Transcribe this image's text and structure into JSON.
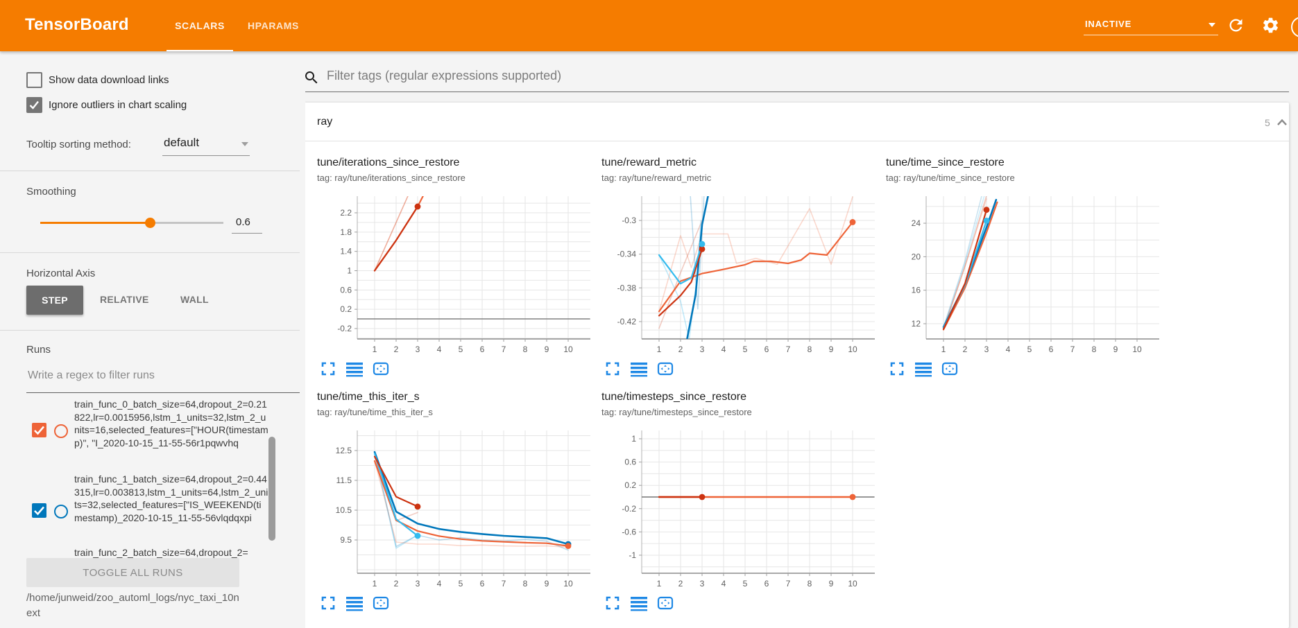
{
  "header": {
    "title": "TensorBoard",
    "tabs": [
      {
        "label": "SCALARS"
      },
      {
        "label": "HPARAMS"
      }
    ],
    "active_tab": "SCALARS",
    "status_dropdown": "INACTIVE",
    "bar_color": "#f57c00"
  },
  "sidebar": {
    "show_download_label": "Show data download links",
    "show_download_checked": false,
    "ignore_outliers_label": "Ignore outliers in chart scaling",
    "ignore_outliers_checked": true,
    "tooltip_label": "Tooltip sorting method:",
    "tooltip_value": "default",
    "smoothing_label": "Smoothing",
    "smoothing_value": "0.6",
    "axis_label": "Horizontal Axis",
    "axis_options": [
      "STEP",
      "RELATIVE",
      "WALL"
    ],
    "axis_selected": "STEP",
    "runs_label": "Runs",
    "runs_filter_placeholder": "Write a regex to filter runs",
    "runs": [
      {
        "name": "train_func_0_batch_size=64,dropout_2=0.21822,lr=0.0015956,lstm_1_units=32,lstm_2_units=16,selected_features=[\"HOUR(timestamp)\", \"I_2020-10-15_11-55-56r1pqwvhq",
        "checked": true,
        "color": "#ee6337"
      },
      {
        "name": "train_func_1_batch_size=64,dropout_2=0.44315,lr=0.003813,lstm_1_units=64,lstm_2_units=32,selected_features=[\"IS_WEEKEND(timestamp)_2020-10-15_11-55-56vlqdqxpi",
        "checked": true,
        "color": "#0077bb"
      },
      {
        "name": "train_func_2_batch_size=64,dropout_2=",
        "checked": null,
        "color": null
      }
    ],
    "toggle_all_label": "TOGGLE ALL RUNS",
    "log_path": "/home/junweid/zoo_automl_logs/nyc_taxi_10next"
  },
  "main": {
    "filter_placeholder": "Filter tags (regular expressions supported)",
    "section_name": "ray",
    "section_count": "5"
  },
  "chart_data": [
    {
      "type": "line",
      "title": "tune/iterations_since_restore",
      "tag": "tag: ray/tune/iterations_since_restore",
      "xticks": [
        1,
        2,
        3,
        4,
        5,
        6,
        7,
        8,
        9,
        10
      ],
      "yticks": [
        2.2,
        1.8,
        1.4,
        1,
        0.6,
        0.2,
        -0.2
      ],
      "ymin": -0.416,
      "ymax": 2.545,
      "ygrid": 0.2,
      "series": [
        {
          "run": "zero-baseline",
          "color": "#757575",
          "opacity": 1,
          "width": 1.4,
          "points": [
            [
              0,
              0
            ],
            [
              11,
              0
            ]
          ]
        },
        {
          "run": "train_func_0-raw",
          "color": "#ee6337",
          "opacity": 0.25,
          "width": 1.6,
          "points": [
            [
              1,
              1
            ],
            [
              2,
              2
            ],
            [
              3,
              3
            ]
          ]
        },
        {
          "run": "train_func_2-raw",
          "color": "#cc3311",
          "opacity": 0.25,
          "width": 1.6,
          "points": [
            [
              1,
              1
            ],
            [
              2,
              2
            ],
            [
              3,
              3
            ]
          ]
        },
        {
          "run": "train_func_0-smoothed",
          "color": "#ee6337",
          "opacity": 1,
          "width": 2.2,
          "points": [
            [
              1,
              1
            ],
            [
              2,
              1.63
            ],
            [
              3,
              2.33
            ],
            [
              3.6,
              2.85
            ]
          ]
        },
        {
          "run": "train_func_2-smoothed",
          "color": "#cc3311",
          "opacity": 1,
          "width": 2.2,
          "points": [
            [
              1,
              1
            ],
            [
              2,
              1.63
            ],
            [
              3,
              2.33
            ]
          ],
          "dot": [
            3,
            2.33
          ]
        }
      ]
    },
    {
      "type": "line",
      "title": "tune/reward_metric",
      "tag": "tag: ray/tune/reward_metric",
      "xticks": [
        1,
        2,
        3,
        4,
        5,
        6,
        7,
        8,
        9,
        10
      ],
      "yticks": [
        -0.3,
        -0.34,
        -0.38,
        -0.42
      ],
      "ymin": -0.4406,
      "ymax": -0.2712,
      "ygrid": 0.01,
      "series": [
        {
          "run": "train_func_0-raw",
          "color": "#ee6337",
          "opacity": 0.25,
          "width": 1.6,
          "points": [
            [
              1,
              -0.408
            ],
            [
              2,
              -0.318
            ],
            [
              2.5,
              -0.356
            ],
            [
              3,
              -0.316
            ],
            [
              4.2,
              -0.316
            ],
            [
              4.6,
              -0.351
            ],
            [
              5.5,
              -0.345
            ],
            [
              6.5,
              -0.352
            ],
            [
              8,
              -0.286
            ],
            [
              9,
              -0.352
            ],
            [
              10,
              -0.272
            ]
          ]
        },
        {
          "run": "train_func_2-raw",
          "color": "#cc3311",
          "opacity": 0.25,
          "width": 1.6,
          "points": [
            [
              1,
              -0.428
            ],
            [
              2,
              -0.362
            ],
            [
              3,
              -0.3
            ]
          ]
        },
        {
          "run": "train_func_1-raw",
          "color": "#0077bb",
          "opacity": 0.25,
          "width": 1.6,
          "points": [
            [
              2.45,
              -0.268
            ],
            [
              2.8,
              -0.405
            ],
            [
              3.1,
              -0.266
            ]
          ]
        },
        {
          "run": "train_func_3-raw",
          "color": "#33bbee",
          "opacity": 0.3,
          "width": 1.6,
          "points": [
            [
              1,
              -0.341
            ],
            [
              2,
              -0.396
            ],
            [
              2.4,
              -0.441
            ],
            [
              2.75,
              -0.37
            ],
            [
              2.95,
              -0.3
            ]
          ]
        },
        {
          "run": "train_func_0-smoothed",
          "color": "#ee6337",
          "opacity": 1,
          "width": 2.2,
          "points": [
            [
              1,
              -0.408
            ],
            [
              2,
              -0.372
            ],
            [
              3,
              -0.363
            ],
            [
              4,
              -0.358
            ],
            [
              5,
              -0.3525
            ],
            [
              5.4,
              -0.3485
            ],
            [
              6.2,
              -0.3485
            ],
            [
              7,
              -0.351
            ],
            [
              7.6,
              -0.347
            ],
            [
              8,
              -0.339
            ],
            [
              8.8,
              -0.341
            ],
            [
              10,
              -0.302
            ]
          ],
          "dot": [
            10,
            -0.302
          ]
        },
        {
          "run": "train_func_1-smoothed",
          "color": "#0077bb",
          "opacity": 1,
          "width": 2.6,
          "points": [
            [
              2.3,
              -0.441
            ],
            [
              2.7,
              -0.388
            ],
            [
              3,
              -0.305
            ],
            [
              3.35,
              -0.262
            ]
          ]
        },
        {
          "run": "train_func_2-smoothed",
          "color": "#cc3311",
          "opacity": 1,
          "width": 2.2,
          "points": [
            [
              1,
              -0.413
            ],
            [
              2,
              -0.389
            ],
            [
              2.5,
              -0.373
            ],
            [
              3,
              -0.334
            ]
          ],
          "dot": [
            3,
            -0.334
          ]
        },
        {
          "run": "train_func_3-smoothed",
          "color": "#33bbee",
          "opacity": 1,
          "width": 2.2,
          "points": [
            [
              1,
              -0.341
            ],
            [
              2,
              -0.375
            ],
            [
              2.5,
              -0.368
            ],
            [
              3,
              -0.328
            ]
          ],
          "dot": [
            3,
            -0.328
          ]
        }
      ]
    },
    {
      "type": "line",
      "title": "tune/time_since_restore",
      "tag": "tag: ray/tune/time_since_restore",
      "xticks": [
        1,
        2,
        3,
        4,
        5,
        6,
        7,
        8,
        9,
        10
      ],
      "yticks": [
        24,
        20,
        16,
        12
      ],
      "ymin": 10.18,
      "ymax": 27.23,
      "ygrid": 2,
      "series": [
        {
          "run": "train_func_1-raw",
          "color": "#0077bb",
          "opacity": 0.2,
          "width": 1.6,
          "points": [
            [
              1,
              11.6
            ],
            [
              2,
              19.5
            ],
            [
              2.78,
              27.3
            ]
          ]
        },
        {
          "run": "train_func_3-raw",
          "color": "#33bbee",
          "opacity": 0.25,
          "width": 1.6,
          "points": [
            [
              1,
              11.5
            ],
            [
              2,
              19.2
            ],
            [
              2.9,
              27.3
            ]
          ]
        },
        {
          "run": "train_func_0-raw",
          "color": "#ee6337",
          "opacity": 0.25,
          "width": 1.6,
          "points": [
            [
              1,
              11.3
            ],
            [
              2,
              18.8
            ],
            [
              3,
              26.9
            ]
          ]
        },
        {
          "run": "train_func_2-raw",
          "color": "#cc3311",
          "opacity": 0.25,
          "width": 1.6,
          "points": [
            [
              1,
              11.35
            ],
            [
              2,
              18.9
            ],
            [
              3,
              27.3
            ]
          ]
        },
        {
          "run": "train_func_0-smoothed",
          "color": "#ee6337",
          "opacity": 1,
          "width": 2.2,
          "points": [
            [
              1,
              11.3
            ],
            [
              2,
              16.3
            ],
            [
              3,
              22.9
            ],
            [
              3.5,
              26.5
            ]
          ]
        },
        {
          "run": "train_func_1-smoothed",
          "color": "#0077bb",
          "opacity": 1,
          "width": 2.6,
          "points": [
            [
              1,
              11.6
            ],
            [
              2,
              16.7
            ],
            [
              3,
              23.5
            ],
            [
              3.45,
              26.8
            ]
          ]
        },
        {
          "run": "train_func_3-smoothed",
          "color": "#33bbee",
          "opacity": 1,
          "width": 2.2,
          "points": [
            [
              1,
              11.5
            ],
            [
              2,
              16.6
            ],
            [
              3,
              24.3
            ]
          ],
          "dot": [
            3,
            24.3
          ]
        },
        {
          "run": "train_func_2-smoothed",
          "color": "#cc3311",
          "opacity": 1,
          "width": 2.2,
          "points": [
            [
              1,
              11.35
            ],
            [
              2,
              16.8
            ],
            [
              3,
              25.6
            ]
          ],
          "dot": [
            3,
            25.6
          ]
        }
      ]
    },
    {
      "type": "line",
      "title": "tune/time_this_iter_s",
      "tag": "tag: ray/tune/time_this_iter_s",
      "xticks": [
        1,
        2,
        3,
        4,
        5,
        6,
        7,
        8,
        9,
        10
      ],
      "yticks": [
        12.5,
        11.5,
        10.5,
        9.5
      ],
      "ymin": 8.384,
      "ymax": 13.174,
      "ygrid": 0.5,
      "series": [
        {
          "run": "train_func_1-raw",
          "color": "#0077bb",
          "opacity": 0.25,
          "width": 1.6,
          "points": [
            [
              1,
              12.45
            ],
            [
              2,
              9.28
            ],
            [
              3,
              9.66
            ],
            [
              4,
              9.5
            ],
            [
              5,
              9.58
            ],
            [
              6,
              9.5
            ],
            [
              7,
              9.46
            ],
            [
              8,
              9.52
            ],
            [
              9,
              9.46
            ],
            [
              10,
              9.16
            ]
          ]
        },
        {
          "run": "train_func_3-raw",
          "color": "#33bbee",
          "opacity": 0.3,
          "width": 1.6,
          "points": [
            [
              1,
              12.4
            ],
            [
              2,
              9.22
            ],
            [
              3,
              9.67
            ]
          ]
        },
        {
          "run": "train_func_0-raw",
          "color": "#ee6337",
          "opacity": 0.25,
          "width": 1.6,
          "points": [
            [
              1,
              12.15
            ],
            [
              2,
              9.43
            ],
            [
              3,
              9.36
            ],
            [
              4,
              9.36
            ],
            [
              5,
              9.31
            ],
            [
              6,
              9.33
            ],
            [
              7,
              9.3
            ],
            [
              8,
              9.29
            ],
            [
              9,
              9.3
            ],
            [
              10,
              9.26
            ]
          ]
        },
        {
          "run": "train_func_2-raw",
          "color": "#cc3311",
          "opacity": 0.25,
          "width": 1.6,
          "points": [
            [
              1,
              12.3
            ],
            [
              2,
              10.15
            ],
            [
              3,
              10.42
            ]
          ]
        },
        {
          "run": "train_func_1-smoothed",
          "color": "#0077bb",
          "opacity": 1,
          "width": 2.6,
          "points": [
            [
              1,
              12.45
            ],
            [
              2,
              10.45
            ],
            [
              3,
              10.05
            ],
            [
              4,
              9.87
            ],
            [
              5,
              9.77
            ],
            [
              6,
              9.7
            ],
            [
              7,
              9.64
            ],
            [
              8,
              9.6
            ],
            [
              9,
              9.56
            ],
            [
              10,
              9.36
            ]
          ],
          "dot": [
            10,
            9.36
          ]
        },
        {
          "run": "train_func_0-smoothed",
          "color": "#ee6337",
          "opacity": 1,
          "width": 2.2,
          "points": [
            [
              1,
              12.15
            ],
            [
              2,
              10.16
            ],
            [
              3,
              9.8
            ],
            [
              4,
              9.63
            ],
            [
              5,
              9.53
            ],
            [
              6,
              9.47
            ],
            [
              7,
              9.44
            ],
            [
              8,
              9.41
            ],
            [
              9,
              9.39
            ],
            [
              10,
              9.3
            ]
          ],
          "dot": [
            10,
            9.3
          ]
        },
        {
          "run": "train_func_3-smoothed",
          "color": "#33bbee",
          "opacity": 1,
          "width": 2.2,
          "points": [
            [
              1,
              12.4
            ],
            [
              2,
              10.2
            ],
            [
              3,
              9.64
            ]
          ],
          "dot": [
            3,
            9.64
          ]
        },
        {
          "run": "train_func_2-smoothed",
          "color": "#cc3311",
          "opacity": 1,
          "width": 2.2,
          "points": [
            [
              1,
              12.3
            ],
            [
              2,
              10.95
            ],
            [
              3,
              10.62
            ]
          ],
          "dot": [
            3,
            10.62
          ]
        }
      ]
    },
    {
      "type": "line",
      "title": "tune/timesteps_since_restore",
      "tag": "tag: ray/tune/timesteps_since_restore",
      "xticks": [
        1,
        2,
        3,
        4,
        5,
        6,
        7,
        8,
        9,
        10
      ],
      "yticks": [
        1,
        0.6,
        0.2,
        -0.2,
        -0.6,
        -1
      ],
      "ymin": -1.31,
      "ymax": 1.143,
      "ygrid": 0.2,
      "series": [
        {
          "run": "zero-baseline",
          "color": "#757575",
          "opacity": 1,
          "width": 1.4,
          "points": [
            [
              0,
              0
            ],
            [
              11,
              0
            ]
          ]
        },
        {
          "run": "train_func_0-smoothed",
          "color": "#ee6337",
          "opacity": 1,
          "width": 2.4,
          "points": [
            [
              1,
              0
            ],
            [
              10,
              0
            ]
          ],
          "dot": [
            10,
            0
          ]
        },
        {
          "run": "train_func_2-smoothed",
          "color": "#cc3311",
          "opacity": 1,
          "width": 2.4,
          "points": [
            [
              1,
              0
            ],
            [
              3,
              0
            ]
          ],
          "dot": [
            3,
            0
          ]
        }
      ]
    }
  ]
}
